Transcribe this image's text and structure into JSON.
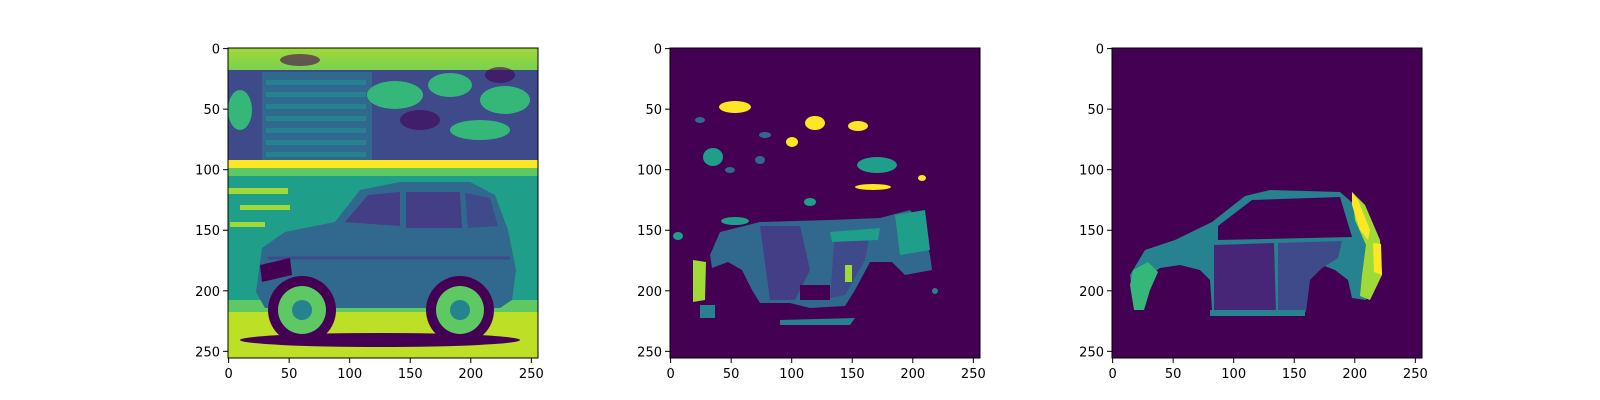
{
  "figure": {
    "background": "#ffffff",
    "colormap": "viridis",
    "frame_color": "#000000"
  },
  "chart_data": [
    {
      "type": "heatmap",
      "subplot": "left",
      "content": "grayscale car photo rendered with viridis colormap",
      "xlim": [
        0,
        255
      ],
      "ylim": [
        255,
        0
      ],
      "xticks": [
        0,
        50,
        100,
        150,
        200,
        250
      ],
      "yticks": [
        0,
        50,
        100,
        150,
        200,
        250
      ],
      "title": "",
      "xlabel": "",
      "ylabel": ""
    },
    {
      "type": "heatmap",
      "subplot": "middle",
      "content": "predicted segmentation mask of car parts (noisy)",
      "xlim": [
        0,
        255
      ],
      "ylim": [
        255,
        0
      ],
      "xticks": [
        0,
        50,
        100,
        150,
        200,
        250
      ],
      "yticks": [
        0,
        50,
        100,
        150,
        200,
        250
      ],
      "title": "",
      "xlabel": "",
      "ylabel": ""
    },
    {
      "type": "heatmap",
      "subplot": "right",
      "content": "ground-truth segmentation mask of car parts",
      "xlim": [
        0,
        255
      ],
      "ylim": [
        255,
        0
      ],
      "xticks": [
        0,
        50,
        100,
        150,
        200,
        250
      ],
      "yticks": [
        0,
        50,
        100,
        150,
        200,
        250
      ],
      "title": "",
      "xlabel": "",
      "ylabel": ""
    }
  ],
  "colors": {
    "viridis_dark": "#440154",
    "viridis_purple": "#482677",
    "viridis_indigo": "#3e4a89",
    "viridis_blue": "#31688e",
    "viridis_teal": "#26828e",
    "viridis_green": "#1f9e89",
    "viridis_mid_green": "#35b779",
    "viridis_lime": "#a0da39",
    "viridis_yellow": "#fde725"
  }
}
